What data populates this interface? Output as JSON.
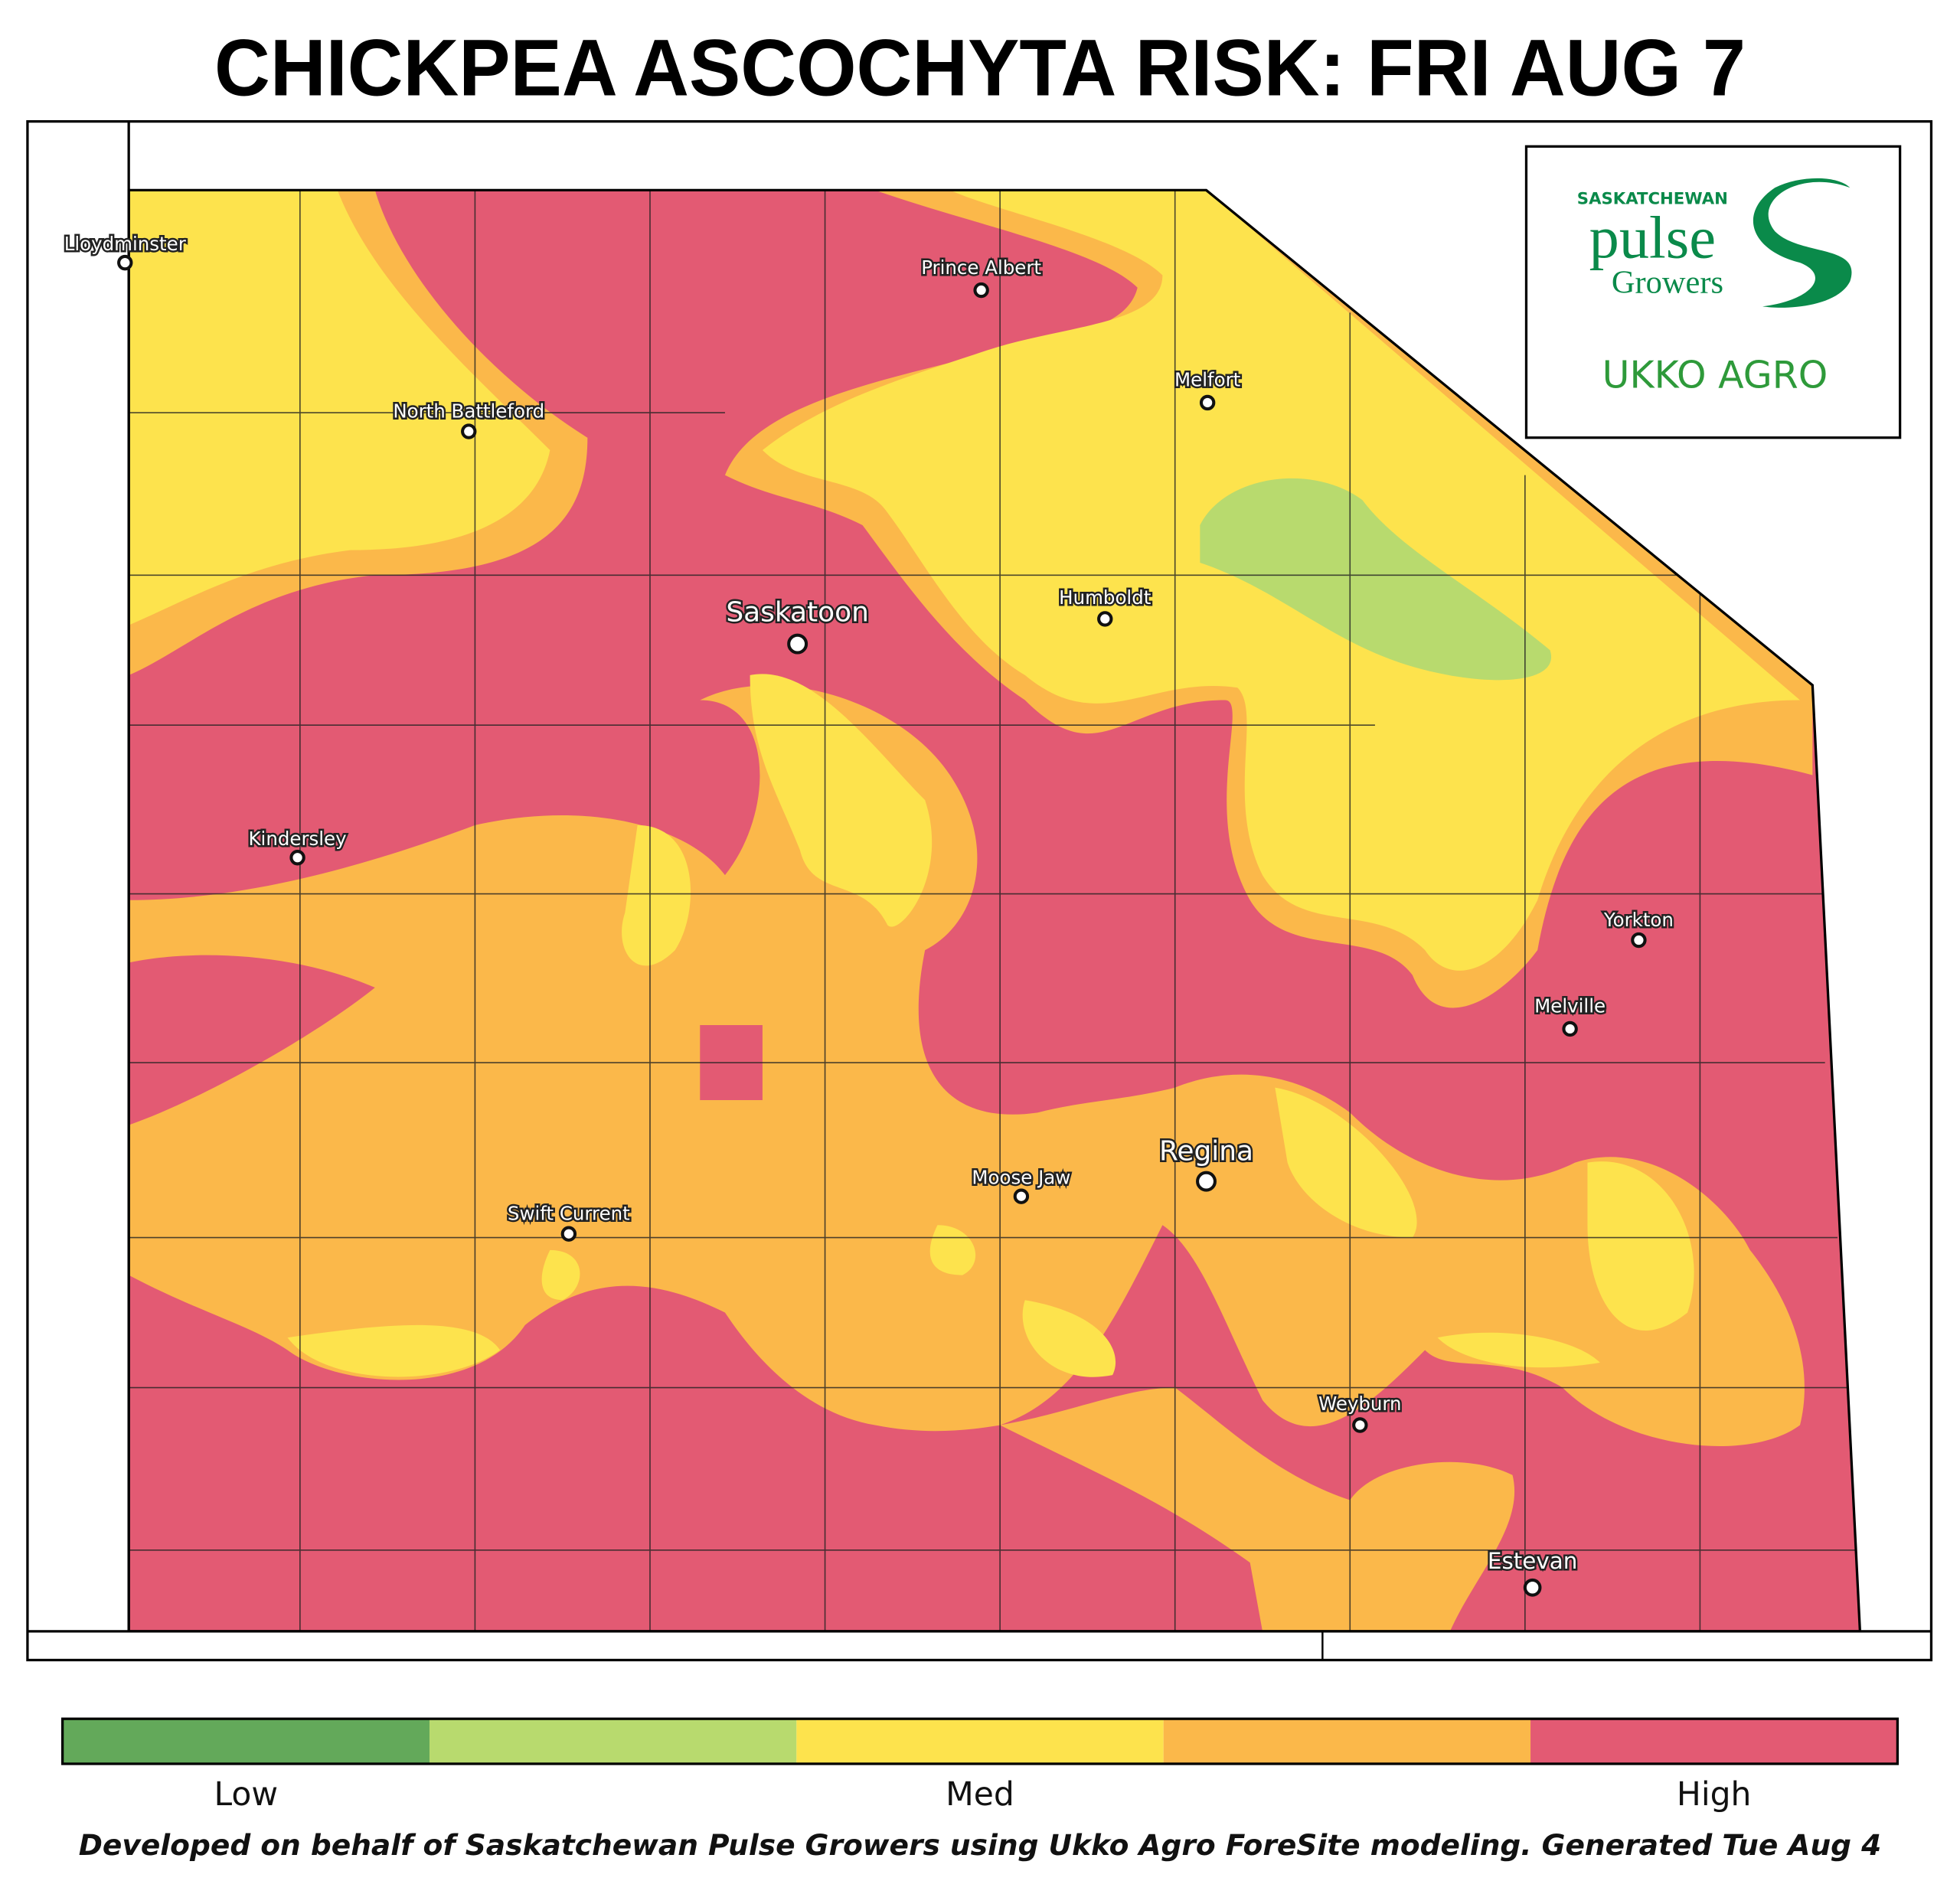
{
  "title": "CHICKPEA ASCOCHYTA RISK: FRI AUG 7",
  "logo": {
    "line1": "SASKATCHEWAN",
    "line2": "pulse",
    "line3": "Growers",
    "line4": "UKKO AGRO"
  },
  "map": {
    "cities": [
      {
        "name": "Lloydminster"
      },
      {
        "name": "Prince Albert"
      },
      {
        "name": "Melfort"
      },
      {
        "name": "North Battleford"
      },
      {
        "name": "Humboldt"
      },
      {
        "name": "Saskatoon"
      },
      {
        "name": "Kindersley"
      },
      {
        "name": "Yorkton"
      },
      {
        "name": "Melville"
      },
      {
        "name": "Regina"
      },
      {
        "name": "Moose Jaw"
      },
      {
        "name": "Swift Current"
      },
      {
        "name": "Weyburn"
      },
      {
        "name": "Estevan"
      }
    ]
  },
  "legend": {
    "colors": [
      "#63a95a",
      "#b8da6e",
      "#fde34d",
      "#fbb84a",
      "#e35a73"
    ],
    "labels": [
      "Low",
      "Med",
      "High"
    ]
  },
  "footer": "Developed on behalf of Saskatchewan Pulse Growers using Ukko Agro ForeSite modeling. Generated Tue Aug 4"
}
